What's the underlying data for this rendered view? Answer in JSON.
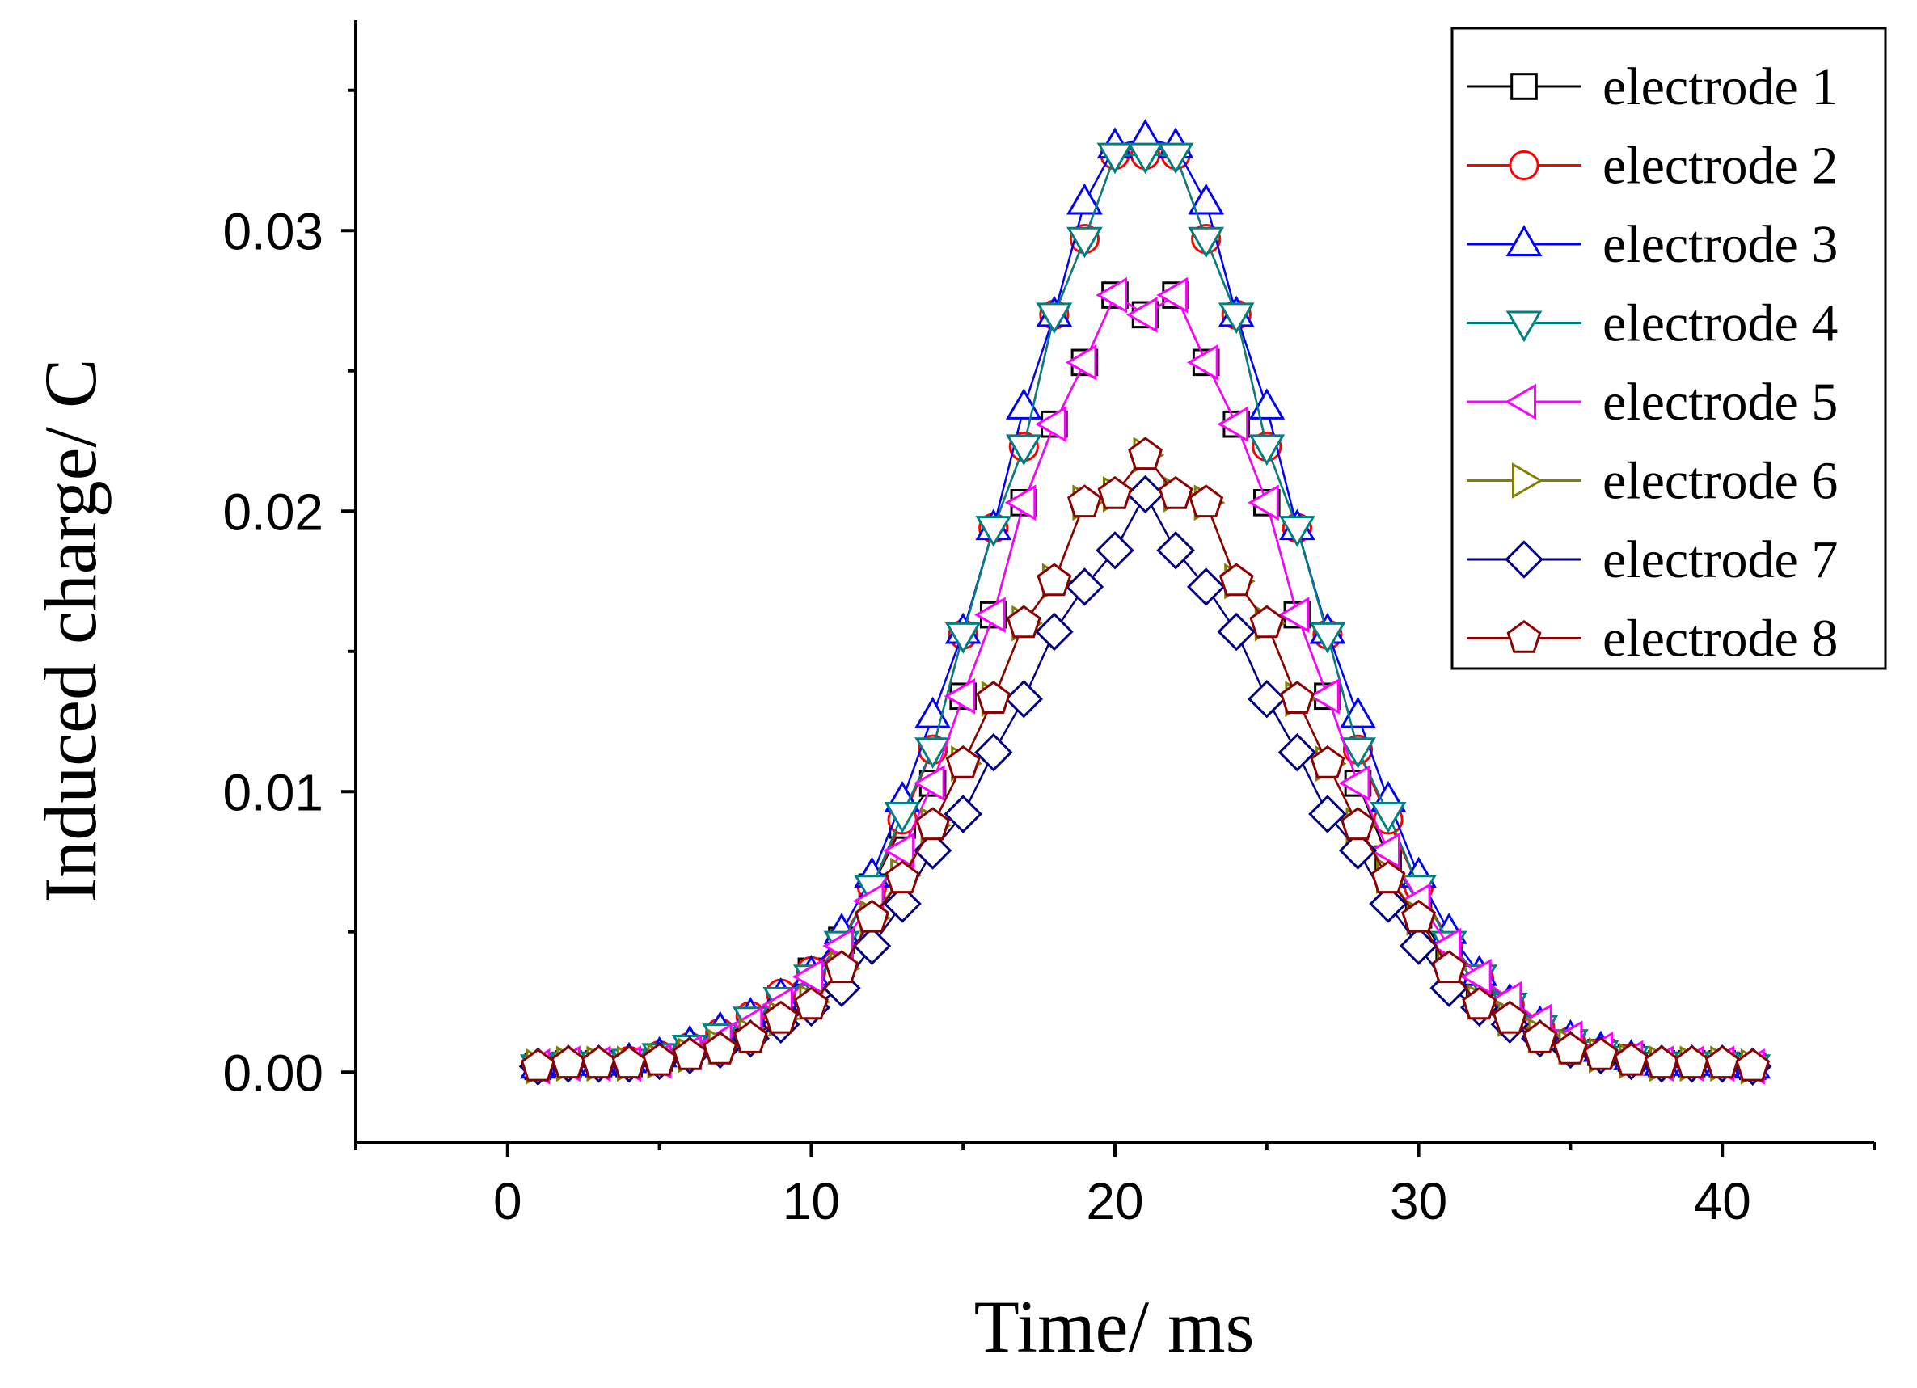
{
  "chart_data": {
    "type": "line",
    "xlabel": "Time/ ms",
    "ylabel": "Induced charge/ C",
    "xlim": [
      -5,
      45
    ],
    "ylim": [
      -0.0025,
      0.0375
    ],
    "xticks": [
      0,
      10,
      20,
      30,
      40
    ],
    "xtick_labels": [
      "0",
      "10",
      "20",
      "30",
      "40"
    ],
    "yticks": [
      0.0,
      0.01,
      0.02,
      0.03
    ],
    "ytick_labels": [
      "0.00",
      "0.01",
      "0.02",
      "0.03"
    ],
    "legend_position": "top-right",
    "x": [
      1,
      2,
      3,
      4,
      5,
      6,
      7,
      8,
      9,
      10,
      11,
      12,
      13,
      14,
      15,
      16,
      17,
      18,
      19,
      20,
      21,
      22,
      23,
      24,
      25,
      26,
      27,
      28,
      29,
      30,
      31,
      32,
      33,
      34,
      35,
      36,
      37,
      38,
      39,
      40,
      41
    ],
    "series": [
      {
        "name": "electrode 1",
        "color": "#000000",
        "marker": "square",
        "values": [
          0.0002,
          0.0003,
          0.0003,
          0.0003,
          0.0005,
          0.0008,
          0.0012,
          0.0018,
          0.0026,
          0.0036,
          0.0047,
          0.0066,
          0.0088,
          0.0103,
          0.0134,
          0.0163,
          0.0203,
          0.0231,
          0.0253,
          0.0277,
          0.027,
          0.0277,
          0.0253,
          0.0231,
          0.0203,
          0.0163,
          0.0134,
          0.0103,
          0.0076,
          0.0056,
          0.004,
          0.0029,
          0.0022,
          0.0014,
          0.001,
          0.0007,
          0.0005,
          0.0003,
          0.0003,
          0.0003,
          0.0002
        ]
      },
      {
        "name": "electrode 2",
        "color": "#ff0000",
        "marker": "circle",
        "values": [
          0.0002,
          0.0003,
          0.0003,
          0.0004,
          0.0006,
          0.0009,
          0.0014,
          0.002,
          0.0028,
          0.0036,
          0.0047,
          0.0066,
          0.009,
          0.0115,
          0.0156,
          0.0194,
          0.0223,
          0.027,
          0.0297,
          0.0327,
          0.0327,
          0.0327,
          0.0297,
          0.027,
          0.0223,
          0.0194,
          0.0156,
          0.0115,
          0.009,
          0.0066,
          0.0047,
          0.0033,
          0.0024,
          0.0016,
          0.0011,
          0.0007,
          0.0005,
          0.0003,
          0.0003,
          0.0003,
          0.0002
        ]
      },
      {
        "name": "electrode 3",
        "color": "#0000ff",
        "marker": "triangle-up",
        "values": [
          0.0002,
          0.0003,
          0.0003,
          0.0004,
          0.0006,
          0.001,
          0.0015,
          0.002,
          0.0027,
          0.0035,
          0.005,
          0.007,
          0.0097,
          0.0127,
          0.0157,
          0.0194,
          0.0237,
          0.027,
          0.031,
          0.033,
          0.0333,
          0.033,
          0.031,
          0.027,
          0.0237,
          0.0194,
          0.0157,
          0.0127,
          0.0097,
          0.007,
          0.005,
          0.0035,
          0.0025,
          0.0017,
          0.0012,
          0.0008,
          0.0005,
          0.0003,
          0.0003,
          0.0003,
          0.0002
        ]
      },
      {
        "name": "electrode 4",
        "color": "#008080",
        "marker": "triangle-down",
        "values": [
          0.0002,
          0.0003,
          0.0003,
          0.0004,
          0.0006,
          0.0009,
          0.0013,
          0.0019,
          0.0026,
          0.0034,
          0.0046,
          0.0066,
          0.0092,
          0.0115,
          0.0156,
          0.0194,
          0.0223,
          0.027,
          0.0297,
          0.0327,
          0.0327,
          0.0327,
          0.0297,
          0.027,
          0.0223,
          0.0194,
          0.0156,
          0.0115,
          0.0092,
          0.0066,
          0.0046,
          0.0034,
          0.0024,
          0.0016,
          0.0011,
          0.0007,
          0.0005,
          0.0003,
          0.0003,
          0.0003,
          0.0002
        ]
      },
      {
        "name": "electrode 5",
        "color": "#ff00ff",
        "marker": "triangle-left",
        "values": [
          0.0002,
          0.0003,
          0.0003,
          0.0003,
          0.0004,
          0.0007,
          0.0011,
          0.0017,
          0.0024,
          0.0034,
          0.0045,
          0.0061,
          0.0079,
          0.0103,
          0.0134,
          0.0163,
          0.0203,
          0.0231,
          0.0253,
          0.0277,
          0.027,
          0.0277,
          0.0253,
          0.0231,
          0.0203,
          0.0163,
          0.0134,
          0.0103,
          0.0079,
          0.0061,
          0.0045,
          0.0034,
          0.0026,
          0.0018,
          0.0012,
          0.0008,
          0.0005,
          0.0003,
          0.0003,
          0.0003,
          0.0002
        ]
      },
      {
        "name": "electrode 6",
        "color": "#808000",
        "marker": "triangle-right",
        "values": [
          0.0002,
          0.0003,
          0.0003,
          0.0003,
          0.0004,
          0.0006,
          0.0009,
          0.0013,
          0.0019,
          0.0025,
          0.0037,
          0.0055,
          0.007,
          0.0088,
          0.011,
          0.0133,
          0.016,
          0.0175,
          0.0203,
          0.0206,
          0.022,
          0.0206,
          0.0203,
          0.0175,
          0.016,
          0.0133,
          0.011,
          0.0088,
          0.007,
          0.0055,
          0.0037,
          0.0025,
          0.0019,
          0.0013,
          0.0009,
          0.0006,
          0.0004,
          0.0003,
          0.0003,
          0.0003,
          0.0002
        ]
      },
      {
        "name": "electrode 7",
        "color": "#000080",
        "marker": "diamond",
        "values": [
          0.0002,
          0.0003,
          0.0003,
          0.0003,
          0.0004,
          0.0006,
          0.0008,
          0.0012,
          0.0017,
          0.0023,
          0.003,
          0.0045,
          0.006,
          0.0079,
          0.0092,
          0.0114,
          0.0133,
          0.0157,
          0.0173,
          0.0186,
          0.0206,
          0.0186,
          0.0173,
          0.0157,
          0.0133,
          0.0114,
          0.0092,
          0.0079,
          0.006,
          0.0045,
          0.003,
          0.0023,
          0.0017,
          0.0012,
          0.0008,
          0.0006,
          0.0004,
          0.0003,
          0.0003,
          0.0003,
          0.0002
        ]
      },
      {
        "name": "electrode 8",
        "color": "#8b0000",
        "marker": "pentagon",
        "values": [
          0.0002,
          0.0003,
          0.0003,
          0.0003,
          0.0004,
          0.0006,
          0.0008,
          0.0012,
          0.0019,
          0.0024,
          0.0037,
          0.0055,
          0.0069,
          0.0088,
          0.011,
          0.0133,
          0.016,
          0.0175,
          0.0203,
          0.0206,
          0.022,
          0.0206,
          0.0203,
          0.0175,
          0.016,
          0.0133,
          0.011,
          0.0088,
          0.0069,
          0.0055,
          0.0037,
          0.0024,
          0.0019,
          0.0012,
          0.0008,
          0.0006,
          0.0004,
          0.0003,
          0.0003,
          0.0003,
          0.0002
        ]
      }
    ]
  }
}
